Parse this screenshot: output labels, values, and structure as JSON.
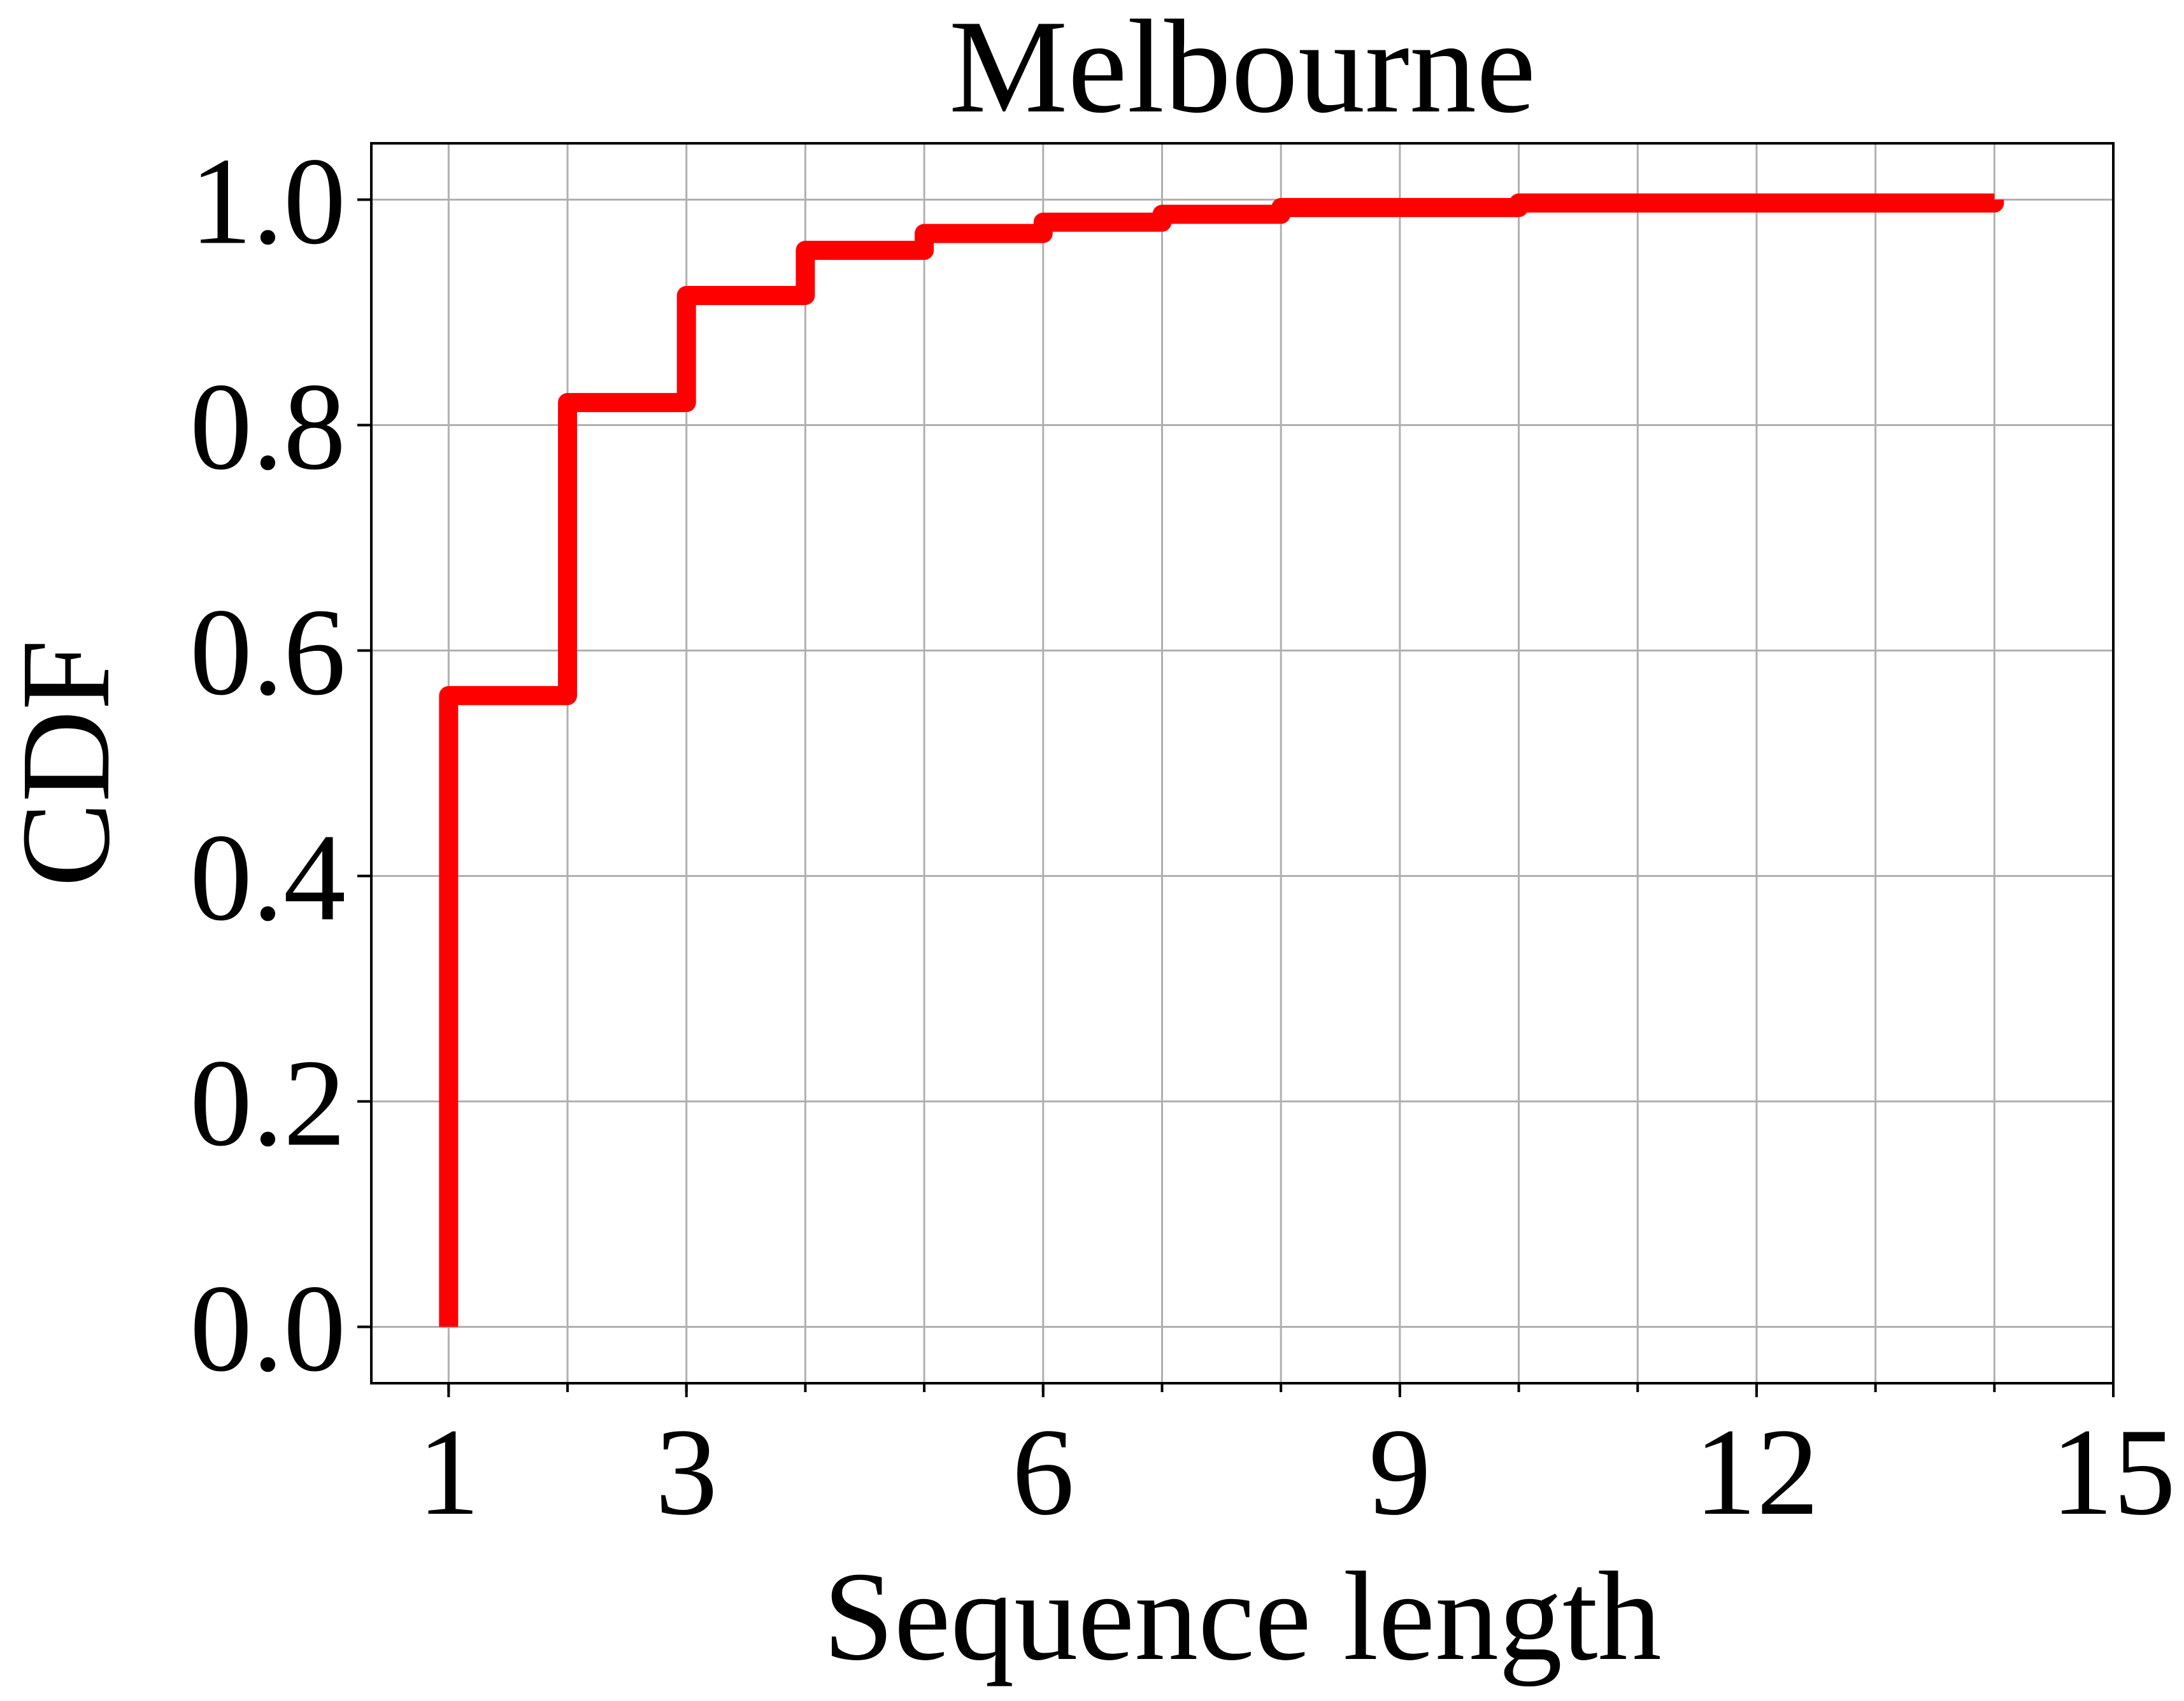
{
  "chart_data": {
    "type": "line",
    "title": "Melbourne",
    "xlabel": "Sequence length",
    "ylabel": "CDF",
    "xlim": [
      0.35,
      15
    ],
    "ylim": [
      -0.05,
      1.05
    ],
    "xticks": [
      1,
      3,
      6,
      9,
      12,
      15
    ],
    "xticks_minor": [
      1,
      2,
      3,
      4,
      5,
      6,
      7,
      8,
      9,
      10,
      11,
      12,
      13,
      14,
      15
    ],
    "yticks": [
      0.0,
      0.2,
      0.4,
      0.6,
      0.8,
      1.0
    ],
    "xtick_labels": [
      "1",
      "3",
      "6",
      "9",
      "12",
      "15"
    ],
    "ytick_labels": [
      "0.0",
      "0.2",
      "0.4",
      "0.6",
      "0.8",
      "1.0"
    ],
    "grid": true,
    "series": [
      {
        "color": "#ff0000",
        "drawstyle": "steps-post",
        "x": [
          1,
          2,
          3,
          4,
          5,
          6,
          7,
          8,
          10,
          14
        ],
        "y": [
          0.56,
          0.82,
          0.915,
          0.955,
          0.97,
          0.98,
          0.987,
          0.993,
          0.997,
          1.0
        ]
      }
    ]
  }
}
